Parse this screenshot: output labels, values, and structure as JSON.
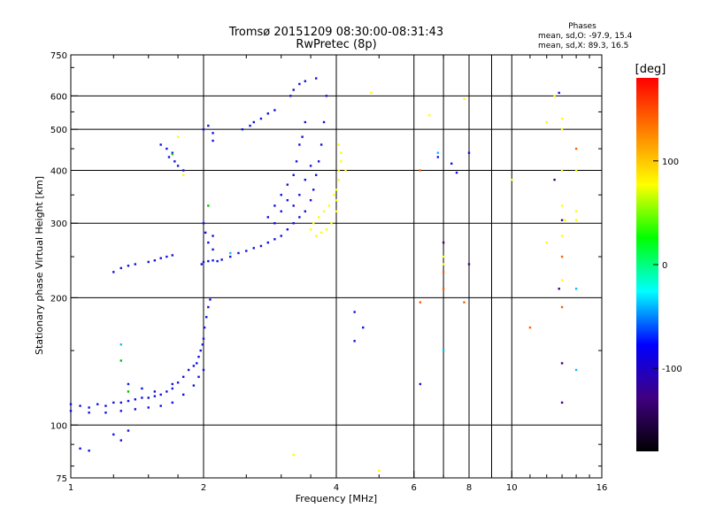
{
  "chart_data": {
    "type": "scatter",
    "title": "Tromsø 20151209 08:30:00-08:31:43",
    "subtitle": "RwPretec (8p)",
    "xlabel": "Frequency [MHz]",
    "ylabel": "Stationary phase Virtual Height [km]",
    "x_scale": "log2",
    "y_scale": "log",
    "xlim": [
      1,
      16
    ],
    "ylim": [
      75,
      750
    ],
    "x_ticks": [
      1,
      2,
      4,
      6,
      8,
      10,
      16
    ],
    "y_ticks": [
      75,
      100,
      200,
      300,
      400,
      500,
      600,
      750
    ],
    "x_grid": [
      2,
      4,
      6,
      7,
      8,
      9,
      10
    ],
    "y_grid": [
      100,
      200,
      300,
      400,
      500,
      600
    ],
    "grid": true,
    "info": {
      "heading": "Phases",
      "line1": "mean, sd,O: -97.9, 15.4",
      "line2": "mean, sd,X:  89.3, 16.5"
    },
    "colorbar": {
      "label": "[deg]",
      "range": [
        -180,
        180
      ],
      "ticks": [
        100,
        0,
        -100
      ],
      "colors": [
        "#ff0000",
        "#ff8000",
        "#ffff00",
        "#00ff00",
        "#00ffff",
        "#0000ff",
        "#400080",
        "#000000"
      ]
    },
    "series": [
      {
        "color": "#1010e0",
        "points": [
          [
            1.0,
            112
          ],
          [
            1.05,
            111
          ],
          [
            1.1,
            110
          ],
          [
            1.15,
            112
          ],
          [
            1.2,
            111
          ],
          [
            1.25,
            113
          ],
          [
            1.3,
            113
          ],
          [
            1.35,
            114
          ],
          [
            1.4,
            115
          ],
          [
            1.45,
            116
          ],
          [
            1.5,
            116
          ],
          [
            1.55,
            117
          ],
          [
            1.6,
            118
          ],
          [
            1.65,
            120
          ],
          [
            1.7,
            122
          ],
          [
            1.75,
            126
          ],
          [
            1.8,
            130
          ],
          [
            1.85,
            135
          ],
          [
            1.9,
            138
          ],
          [
            1.93,
            140
          ],
          [
            1.95,
            145
          ],
          [
            1.97,
            150
          ],
          [
            1.99,
            155
          ],
          [
            2.0,
            160
          ],
          [
            2.01,
            170
          ],
          [
            2.03,
            180
          ],
          [
            2.05,
            190
          ],
          [
            2.07,
            198
          ],
          [
            1.0,
            108
          ],
          [
            1.1,
            107
          ],
          [
            1.2,
            107
          ],
          [
            1.3,
            108
          ],
          [
            1.4,
            109
          ],
          [
            1.5,
            110
          ],
          [
            1.6,
            111
          ],
          [
            1.7,
            113
          ],
          [
            1.8,
            118
          ],
          [
            1.9,
            124
          ],
          [
            1.95,
            130
          ],
          [
            2.0,
            135
          ],
          [
            1.35,
            125
          ],
          [
            1.45,
            122
          ],
          [
            1.55,
            120
          ],
          [
            1.7,
            125
          ],
          [
            1.25,
            230
          ],
          [
            1.3,
            235
          ],
          [
            1.35,
            238
          ],
          [
            1.4,
            240
          ],
          [
            1.5,
            243
          ],
          [
            1.55,
            245
          ],
          [
            1.6,
            248
          ],
          [
            1.65,
            250
          ],
          [
            1.7,
            252
          ],
          [
            1.67,
            430
          ],
          [
            1.7,
            440
          ],
          [
            1.72,
            420
          ],
          [
            1.75,
            410
          ],
          [
            1.8,
            400
          ],
          [
            1.6,
            460
          ],
          [
            1.65,
            450
          ],
          [
            1.98,
            240
          ],
          [
            2.0,
            243
          ],
          [
            2.05,
            244
          ],
          [
            2.1,
            245
          ],
          [
            2.15,
            244
          ],
          [
            2.2,
            246
          ],
          [
            2.1,
            260
          ],
          [
            2.1,
            280
          ],
          [
            2.0,
            300
          ],
          [
            2.02,
            285
          ],
          [
            2.05,
            270
          ],
          [
            2.3,
            250
          ],
          [
            2.4,
            255
          ],
          [
            2.5,
            258
          ],
          [
            2.6,
            262
          ],
          [
            2.7,
            265
          ],
          [
            2.8,
            270
          ],
          [
            2.9,
            275
          ],
          [
            3.0,
            280
          ],
          [
            3.1,
            290
          ],
          [
            3.2,
            300
          ],
          [
            3.3,
            310
          ],
          [
            3.4,
            320
          ],
          [
            3.5,
            340
          ],
          [
            3.55,
            360
          ],
          [
            3.6,
            390
          ],
          [
            3.65,
            420
          ],
          [
            3.7,
            460
          ],
          [
            3.75,
            520
          ],
          [
            3.8,
            600
          ],
          [
            2.8,
            310
          ],
          [
            2.9,
            330
          ],
          [
            3.0,
            350
          ],
          [
            3.1,
            370
          ],
          [
            3.2,
            390
          ],
          [
            3.25,
            420
          ],
          [
            3.3,
            460
          ],
          [
            3.35,
            480
          ],
          [
            3.4,
            520
          ],
          [
            2.9,
            300
          ],
          [
            3.0,
            320
          ],
          [
            3.1,
            340
          ],
          [
            3.2,
            330
          ],
          [
            3.3,
            350
          ],
          [
            3.4,
            380
          ],
          [
            3.5,
            410
          ],
          [
            2.0,
            500
          ],
          [
            2.05,
            510
          ],
          [
            2.1,
            490
          ],
          [
            2.1,
            470
          ],
          [
            2.45,
            500
          ],
          [
            2.55,
            510
          ],
          [
            2.6,
            520
          ],
          [
            2.7,
            530
          ],
          [
            2.8,
            545
          ],
          [
            2.9,
            555
          ],
          [
            3.15,
            600
          ],
          [
            3.2,
            620
          ],
          [
            3.3,
            640
          ],
          [
            3.4,
            650
          ],
          [
            3.6,
            660
          ],
          [
            1.25,
            95
          ],
          [
            1.3,
            92
          ],
          [
            1.35,
            97
          ],
          [
            1.05,
            88
          ],
          [
            1.1,
            87
          ],
          [
            4.4,
            185
          ],
          [
            4.6,
            170
          ],
          [
            4.4,
            158
          ],
          [
            6.2,
            125
          ],
          [
            6.8,
            430
          ],
          [
            7.3,
            415
          ],
          [
            7.5,
            395
          ],
          [
            8.0,
            440
          ],
          [
            12.8,
            610
          ]
        ]
      },
      {
        "color": "#ffff00",
        "points": [
          [
            3.6,
            280
          ],
          [
            3.7,
            285
          ],
          [
            3.8,
            290
          ],
          [
            3.9,
            300
          ],
          [
            4.0,
            320
          ],
          [
            4.0,
            340
          ],
          [
            4.0,
            360
          ],
          [
            4.05,
            380
          ],
          [
            4.05,
            400
          ],
          [
            4.1,
            420
          ],
          [
            4.1,
            440
          ],
          [
            4.05,
            460
          ],
          [
            3.5,
            290
          ],
          [
            3.55,
            300
          ],
          [
            3.65,
            310
          ],
          [
            3.75,
            320
          ],
          [
            3.85,
            330
          ],
          [
            3.95,
            350
          ],
          [
            4.2,
            400
          ],
          [
            4.8,
            610
          ],
          [
            6.5,
            540
          ],
          [
            7.0,
            250
          ],
          [
            7.0,
            240
          ],
          [
            12.5,
            600
          ],
          [
            13.0,
            530
          ],
          [
            13.0,
            500
          ],
          [
            12.0,
            520
          ],
          [
            13.0,
            400
          ],
          [
            13.0,
            330
          ],
          [
            13.2,
            305
          ],
          [
            13.0,
            280
          ],
          [
            14.0,
            320
          ],
          [
            14.0,
            305
          ],
          [
            12.0,
            270
          ],
          [
            13.0,
            220
          ],
          [
            14.0,
            400
          ],
          [
            10.0,
            380
          ],
          [
            7.8,
            590
          ],
          [
            1.75,
            480
          ],
          [
            1.8,
            390
          ],
          [
            3.2,
            85
          ],
          [
            5.0,
            78
          ]
        ]
      },
      {
        "color": "#ff6000",
        "points": [
          [
            7.0,
            210
          ],
          [
            7.0,
            230
          ],
          [
            13.0,
            250
          ],
          [
            13.0,
            190
          ],
          [
            11.0,
            170
          ],
          [
            6.2,
            195
          ],
          [
            7.8,
            195
          ],
          [
            14.0,
            450
          ],
          [
            6.2,
            400
          ]
        ]
      },
      {
        "color": "#00c000",
        "points": [
          [
            1.3,
            142
          ],
          [
            1.35,
            120
          ],
          [
            1.7,
            437
          ],
          [
            2.05,
            330
          ]
        ]
      },
      {
        "color": "#00c0ff",
        "points": [
          [
            1.3,
            155
          ],
          [
            7.0,
            150
          ],
          [
            14.0,
            210
          ],
          [
            14.0,
            135
          ],
          [
            6.8,
            440
          ],
          [
            2.3,
            255
          ]
        ]
      },
      {
        "color": "#400080",
        "points": [
          [
            13.0,
            113
          ],
          [
            13.0,
            140
          ],
          [
            13.0,
            305
          ],
          [
            12.5,
            380
          ],
          [
            7.0,
            270
          ],
          [
            8.0,
            240
          ],
          [
            12.8,
            210
          ]
        ]
      }
    ]
  }
}
